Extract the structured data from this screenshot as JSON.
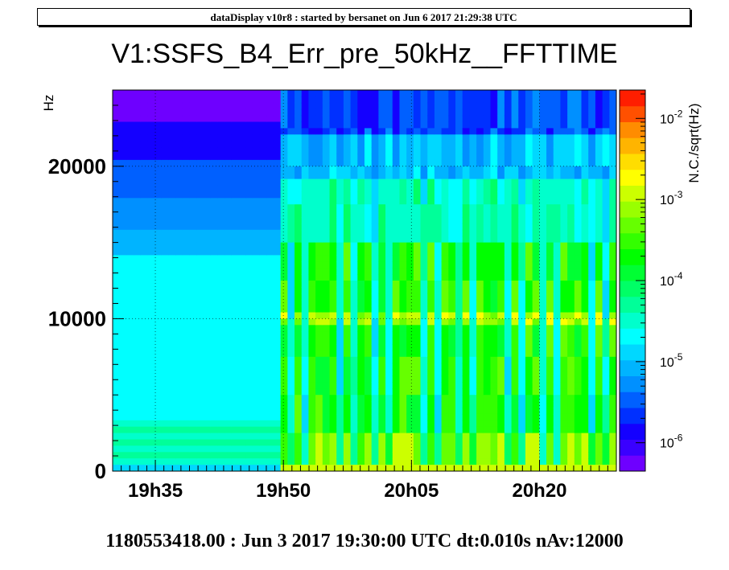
{
  "header": {
    "text": "dataDisplay v10r8 : started by bersanet on Jun  6 2017 21:29:38 UTC"
  },
  "footer": {
    "text": "1180553418.00 : Jun  3 2017 19:30:00 UTC dt:0.010s nAv:12000"
  },
  "chart_data": {
    "type": "heatmap",
    "title": "V1:SSFS_B4_Err_pre_50kHz__FFTTIME",
    "ylabel": "Hz",
    "zlabel": "N.C./sqrt(Hz)",
    "z_scale": "log",
    "x_tick_labels": [
      "19h35",
      "19h50",
      "20h05",
      "20h20"
    ],
    "x_tick_values_min": [
      5,
      20,
      35,
      50
    ],
    "xlim_min": [
      0,
      59
    ],
    "y_ticks": [
      0,
      10000,
      20000
    ],
    "ylim": [
      0,
      25000
    ],
    "colorbar": {
      "ticks": [
        {
          "base": "10",
          "exp": "-6",
          "value": 1e-06
        },
        {
          "base": "10",
          "exp": "-5",
          "value": 1e-05
        },
        {
          "base": "10",
          "exp": "-4",
          "value": 0.0001
        },
        {
          "base": "10",
          "exp": "-3",
          "value": 0.001
        },
        {
          "base": "10",
          "exp": "-2",
          "value": 0.01
        }
      ],
      "zlim_log10": [
        -6.35,
        -1.65
      ]
    },
    "grid": true
  }
}
